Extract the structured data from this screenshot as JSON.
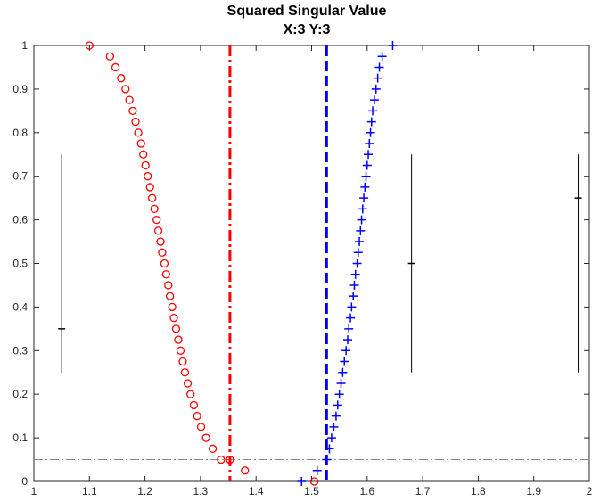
{
  "chart_data": {
    "type": "scatter",
    "title": "Squared Singular Value",
    "subtitle": "X:3  Y:3",
    "xlabel": "",
    "ylabel": "",
    "xlim": [
      1,
      2
    ],
    "ylim": [
      0,
      1
    ],
    "x_ticks": [
      "1",
      "1.1",
      "1.2",
      "1.3",
      "1.4",
      "1.5",
      "1.6",
      "1.7",
      "1.8",
      "1.9",
      "2"
    ],
    "y_ticks": [
      "0",
      "0.1",
      "0.2",
      "0.3",
      "0.4",
      "0.5",
      "0.6",
      "0.7",
      "0.8",
      "0.9",
      "1"
    ],
    "grid": false,
    "series": [
      {
        "marker": "circle",
        "color": "#ff0000",
        "points": [
          [
            1.1,
            1.0
          ],
          [
            1.137,
            0.975
          ],
          [
            1.147,
            0.95
          ],
          [
            1.157,
            0.925
          ],
          [
            1.165,
            0.9
          ],
          [
            1.172,
            0.875
          ],
          [
            1.178,
            0.85
          ],
          [
            1.183,
            0.825
          ],
          [
            1.188,
            0.8
          ],
          [
            1.193,
            0.775
          ],
          [
            1.197,
            0.75
          ],
          [
            1.201,
            0.725
          ],
          [
            1.205,
            0.7
          ],
          [
            1.209,
            0.675
          ],
          [
            1.213,
            0.65
          ],
          [
            1.217,
            0.625
          ],
          [
            1.221,
            0.6
          ],
          [
            1.224,
            0.575
          ],
          [
            1.228,
            0.55
          ],
          [
            1.231,
            0.525
          ],
          [
            1.235,
            0.5
          ],
          [
            1.238,
            0.475
          ],
          [
            1.242,
            0.45
          ],
          [
            1.245,
            0.425
          ],
          [
            1.249,
            0.4
          ],
          [
            1.252,
            0.375
          ],
          [
            1.256,
            0.35
          ],
          [
            1.26,
            0.325
          ],
          [
            1.264,
            0.3
          ],
          [
            1.268,
            0.275
          ],
          [
            1.272,
            0.25
          ],
          [
            1.277,
            0.225
          ],
          [
            1.282,
            0.2
          ],
          [
            1.288,
            0.175
          ],
          [
            1.294,
            0.15
          ],
          [
            1.301,
            0.125
          ],
          [
            1.31,
            0.1
          ],
          [
            1.322,
            0.075
          ],
          [
            1.337,
            0.05
          ],
          [
            1.353,
            0.05
          ],
          [
            1.38,
            0.025
          ],
          [
            1.505,
            0.0
          ]
        ]
      },
      {
        "marker": "plus",
        "color": "#0000ff",
        "points": [
          [
            1.482,
            0.0
          ],
          [
            1.51,
            0.025
          ],
          [
            1.527,
            0.05
          ],
          [
            1.532,
            0.075
          ],
          [
            1.536,
            0.1
          ],
          [
            1.54,
            0.125
          ],
          [
            1.544,
            0.15
          ],
          [
            1.547,
            0.175
          ],
          [
            1.55,
            0.2
          ],
          [
            1.553,
            0.225
          ],
          [
            1.556,
            0.25
          ],
          [
            1.559,
            0.275
          ],
          [
            1.562,
            0.3
          ],
          [
            1.565,
            0.325
          ],
          [
            1.567,
            0.35
          ],
          [
            1.57,
            0.375
          ],
          [
            1.572,
            0.4
          ],
          [
            1.575,
            0.425
          ],
          [
            1.577,
            0.45
          ],
          [
            1.579,
            0.475
          ],
          [
            1.582,
            0.5
          ],
          [
            1.584,
            0.525
          ],
          [
            1.586,
            0.55
          ],
          [
            1.588,
            0.575
          ],
          [
            1.59,
            0.6
          ],
          [
            1.592,
            0.625
          ],
          [
            1.594,
            0.65
          ],
          [
            1.596,
            0.675
          ],
          [
            1.598,
            0.7
          ],
          [
            1.6,
            0.725
          ],
          [
            1.602,
            0.75
          ],
          [
            1.604,
            0.775
          ],
          [
            1.606,
            0.8
          ],
          [
            1.608,
            0.825
          ],
          [
            1.61,
            0.85
          ],
          [
            1.613,
            0.875
          ],
          [
            1.616,
            0.9
          ],
          [
            1.619,
            0.925
          ],
          [
            1.622,
            0.95
          ],
          [
            1.627,
            0.975
          ],
          [
            1.646,
            1.0
          ]
        ]
      }
    ],
    "vertical_lines": [
      {
        "x": 1.353,
        "style": "dash-dot",
        "color": "#ff0000"
      },
      {
        "x": 1.527,
        "style": "dashed",
        "color": "#0000ff"
      }
    ],
    "horizontal_lines": [
      {
        "y": 0.05,
        "style": "dash-dot",
        "color": "#888888"
      }
    ],
    "error_bars": [
      {
        "x": 1.05,
        "y": 0.35,
        "low": 0.25,
        "high": 0.75
      },
      {
        "x": 1.68,
        "y": 0.5,
        "low": 0.25,
        "high": 0.75
      },
      {
        "x": 1.98,
        "y": 0.65,
        "low": 0.25,
        "high": 0.75
      }
    ]
  }
}
